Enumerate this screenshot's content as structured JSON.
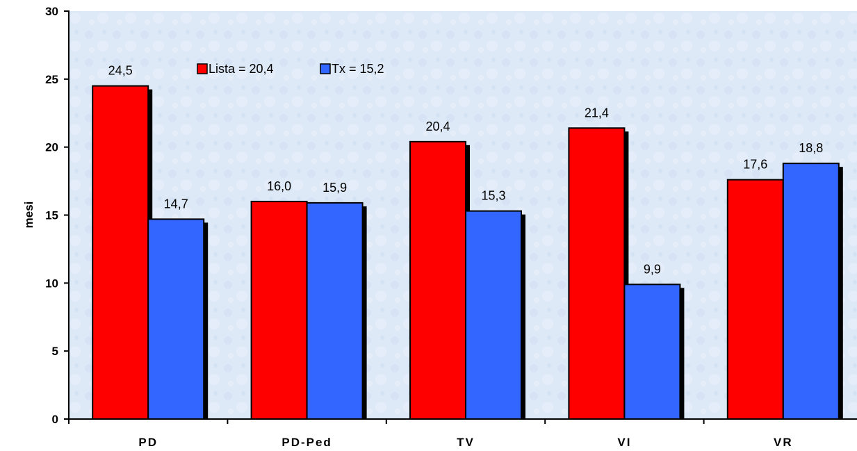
{
  "chart_data": {
    "type": "bar",
    "categories": [
      "PD",
      "PD-Ped",
      "TV",
      "VI",
      "VR"
    ],
    "series": [
      {
        "name": "Lista = 20,4",
        "color": "#ff0000",
        "values": [
          24.5,
          16.0,
          20.4,
          21.4,
          17.6
        ]
      },
      {
        "name": "Tx = 15,2",
        "color": "#3366ff",
        "values": [
          14.7,
          15.9,
          15.3,
          9.9,
          18.8
        ]
      }
    ],
    "value_labels": [
      [
        "24,5",
        "16,0",
        "20,4",
        "21,4",
        "17,6"
      ],
      [
        "14,7",
        "15,9",
        "15,3",
        "9,9",
        "18,8"
      ]
    ],
    "title": "",
    "xlabel": "",
    "ylabel": "mesi",
    "ylim": [
      0,
      30
    ],
    "yticks": [
      0,
      5,
      10,
      15,
      20,
      25,
      30
    ],
    "ytick_labels": [
      "0",
      "5",
      "10",
      "15",
      "20",
      "25",
      "30"
    ],
    "legend_position": "top-left inside plot",
    "grid": false,
    "background": "light blue texture"
  }
}
